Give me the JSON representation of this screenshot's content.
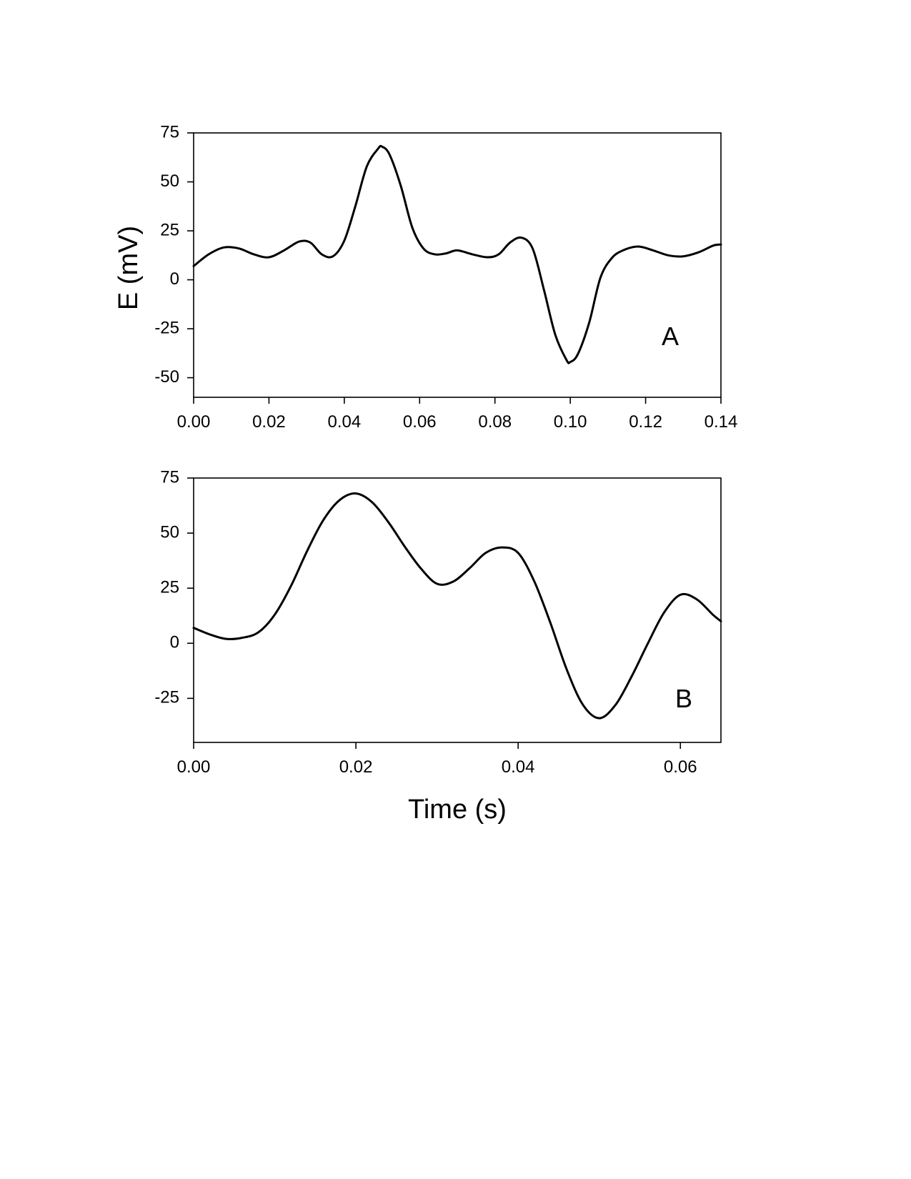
{
  "chart_data": [
    {
      "type": "line",
      "panel_label": "A",
      "ylabel": "E (mV)",
      "xlabel": "",
      "xlim": [
        0,
        0.14
      ],
      "ylim": [
        -60,
        75
      ],
      "x_ticks": [
        "0.00",
        "0.02",
        "0.04",
        "0.06",
        "0.08",
        "0.10",
        "0.12",
        "0.14"
      ],
      "y_ticks": [
        "75",
        "50",
        "25",
        "0",
        "-25",
        "-50"
      ],
      "series": [
        {
          "x": [
            0,
            0.004,
            0.008,
            0.012,
            0.016,
            0.02,
            0.024,
            0.028,
            0.031,
            0.034,
            0.037,
            0.04,
            0.043,
            0.046,
            0.049,
            0.05,
            0.052,
            0.055,
            0.058,
            0.061,
            0.064,
            0.067,
            0.07,
            0.074,
            0.078,
            0.081,
            0.084,
            0.087,
            0.09,
            0.093,
            0.096,
            0.099,
            0.1,
            0.102,
            0.105,
            0.108,
            0.111,
            0.114,
            0.118,
            0.122,
            0.126,
            0.13,
            0.134,
            0.138,
            0.14
          ],
          "y": [
            7,
            13,
            16.5,
            16,
            13,
            11.5,
            15,
            19.5,
            19,
            13,
            12,
            20,
            38,
            58,
            67,
            68,
            64,
            48,
            27,
            16,
            13,
            13.5,
            15,
            13,
            11.5,
            13,
            19,
            21.5,
            16,
            -5,
            -28,
            -41,
            -42,
            -38,
            -22,
            1,
            11,
            15,
            17,
            15,
            12.5,
            12,
            14,
            17.5,
            18
          ]
        }
      ]
    },
    {
      "type": "line",
      "panel_label": "B",
      "ylabel": "E (mV)",
      "xlabel": "Time (s)",
      "xlim": [
        0,
        0.065
      ],
      "ylim": [
        -45,
        75
      ],
      "x_ticks": [
        "0.00",
        "0.02",
        "0.04",
        "0.06"
      ],
      "y_ticks": [
        "75",
        "50",
        "25",
        "0",
        "-25"
      ],
      "series": [
        {
          "x": [
            0,
            0.002,
            0.004,
            0.006,
            0.008,
            0.01,
            0.012,
            0.014,
            0.016,
            0.018,
            0.02,
            0.022,
            0.024,
            0.026,
            0.028,
            0.03,
            0.032,
            0.034,
            0.036,
            0.038,
            0.04,
            0.042,
            0.044,
            0.046,
            0.048,
            0.05,
            0.052,
            0.054,
            0.056,
            0.058,
            0.06,
            0.062,
            0.064,
            0.065
          ],
          "y": [
            7,
            4,
            2,
            2.5,
            5,
            13,
            26,
            42,
            56,
            65,
            68,
            64,
            55,
            44,
            34,
            27,
            28,
            34,
            41,
            43.5,
            41,
            28,
            9,
            -12,
            -28,
            -34,
            -28,
            -15,
            0,
            14,
            22,
            20,
            13,
            10
          ]
        }
      ]
    }
  ]
}
